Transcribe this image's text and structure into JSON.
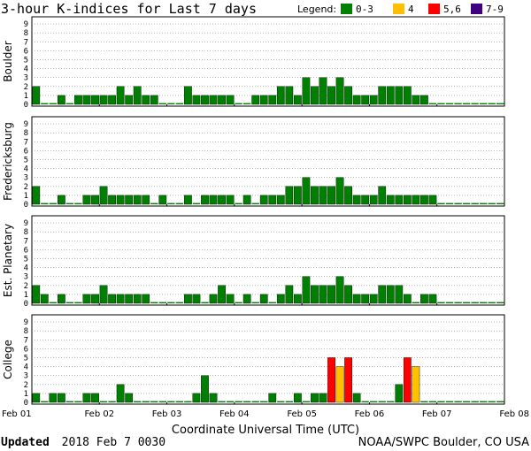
{
  "chart_data": {
    "type": "bar",
    "title": "3-hour K-indices for Last 7 days",
    "legend": {
      "title": "Legend:",
      "placement": "top-right",
      "items": [
        {
          "label": "0-3",
          "color": "#008000"
        },
        {
          "label": "4",
          "color": "#FFC000"
        },
        {
          "label": "5,6",
          "color": "#FF0000"
        },
        {
          "label": "7-9",
          "color": "#400080"
        }
      ]
    },
    "xlabel": "Coordinate Universal Time (UTC)",
    "x_ticks": [
      "Feb 01",
      "Feb 02",
      "Feb 03",
      "Feb 04",
      "Feb 05",
      "Feb 06",
      "Feb 07",
      "Feb 08"
    ],
    "y_ticks": [
      "0",
      "1",
      "2",
      "3",
      "4",
      "5",
      "6",
      "7",
      "8",
      "9"
    ],
    "ylim": [
      0,
      9
    ],
    "grid": "horizontal dotted",
    "slots_total": 56,
    "panels": [
      {
        "name": "Boulder",
        "values": [
          2,
          0,
          0,
          1,
          0,
          1,
          1,
          1,
          1,
          1,
          2,
          1,
          2,
          1,
          1,
          0,
          0,
          0,
          2,
          1,
          1,
          1,
          1,
          1,
          0,
          0,
          1,
          1,
          1,
          2,
          2,
          1,
          3,
          2,
          3,
          2,
          3,
          2,
          1,
          1,
          1,
          2,
          2,
          2,
          2,
          1,
          1
        ]
      },
      {
        "name": "Fredericksburg",
        "values": [
          2,
          0,
          0,
          1,
          0,
          0,
          1,
          1,
          2,
          1,
          1,
          1,
          1,
          1,
          0,
          1,
          0,
          0,
          1,
          0,
          1,
          1,
          1,
          1,
          0,
          1,
          0,
          1,
          1,
          1,
          2,
          2,
          3,
          2,
          2,
          2,
          3,
          2,
          1,
          1,
          1,
          2,
          1,
          1,
          1,
          1,
          1,
          1
        ]
      },
      {
        "name": "Est. Planetary",
        "values": [
          2,
          1,
          0,
          1,
          0,
          0,
          1,
          1,
          2,
          1,
          1,
          1,
          1,
          1,
          0,
          0,
          0,
          0,
          1,
          1,
          0,
          1,
          2,
          1,
          0,
          1,
          0,
          1,
          0,
          1,
          2,
          1,
          3,
          2,
          2,
          2,
          3,
          2,
          1,
          1,
          1,
          2,
          2,
          2,
          1,
          0,
          1,
          1
        ]
      },
      {
        "name": "College",
        "values": [
          1,
          0,
          1,
          1,
          0,
          0,
          1,
          1,
          0,
          0,
          2,
          1,
          0,
          0,
          0,
          0,
          0,
          0,
          0,
          1,
          3,
          1,
          0,
          0,
          0,
          0,
          0,
          0,
          1,
          0,
          0,
          1,
          0,
          1,
          1,
          5,
          4,
          5,
          1,
          0,
          0,
          0,
          0,
          2,
          5,
          4
        ]
      }
    ]
  },
  "footer": {
    "updated_label": "Updated",
    "updated_value": "2018 Feb  7 0030",
    "source": "NOAA/SWPC Boulder, CO USA"
  }
}
